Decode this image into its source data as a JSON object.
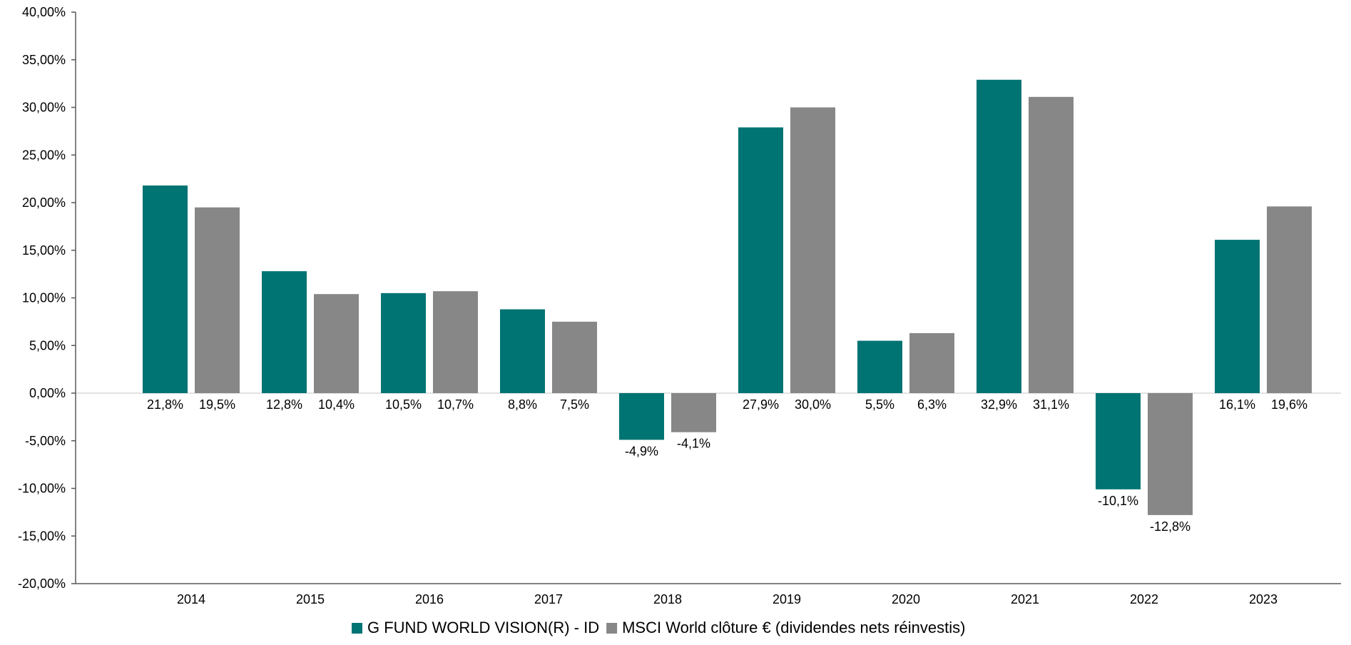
{
  "chart_data": {
    "type": "bar",
    "categories": [
      "2014",
      "2015",
      "2016",
      "2017",
      "2018",
      "2019",
      "2020",
      "2021",
      "2022",
      "2023"
    ],
    "series": [
      {
        "name": "G FUND WORLD VISION(R) - ID",
        "color": "#007373",
        "values": [
          21.8,
          12.8,
          10.5,
          8.8,
          -4.9,
          27.9,
          5.5,
          32.9,
          -10.1,
          16.1
        ],
        "labels": [
          "21,8%",
          "12,8%",
          "10,5%",
          "8,8%",
          "-4,9%",
          "27,9%",
          "5,5%",
          "32,9%",
          "-10,1%",
          "16,1%"
        ]
      },
      {
        "name": "MSCI World clôture € (dividendes nets réinvestis)",
        "color": "#878787",
        "values": [
          19.5,
          10.4,
          10.7,
          7.5,
          -4.1,
          30.0,
          6.3,
          31.1,
          -12.8,
          19.6
        ],
        "labels": [
          "19,5%",
          "10,4%",
          "10,7%",
          "7,5%",
          "-4,1%",
          "30,0%",
          "6,3%",
          "31,1%",
          "-12,8%",
          "19,6%"
        ]
      }
    ],
    "ylim": [
      -20,
      40
    ],
    "yticks": [
      40,
      35,
      30,
      25,
      20,
      15,
      10,
      5,
      0,
      -5,
      -10,
      -15,
      -20
    ],
    "ytick_labels": [
      "40,00%",
      "35,00%",
      "30,00%",
      "25,00%",
      "20,00%",
      "15,00%",
      "10,00%",
      "5,00%",
      "0,00%",
      "-5,00%",
      "-10,00%",
      "-15,00%",
      "-20,00%"
    ],
    "title": "",
    "xlabel": "",
    "ylabel": "",
    "grid": false,
    "legend_position": "bottom-center",
    "data_labels": true
  }
}
